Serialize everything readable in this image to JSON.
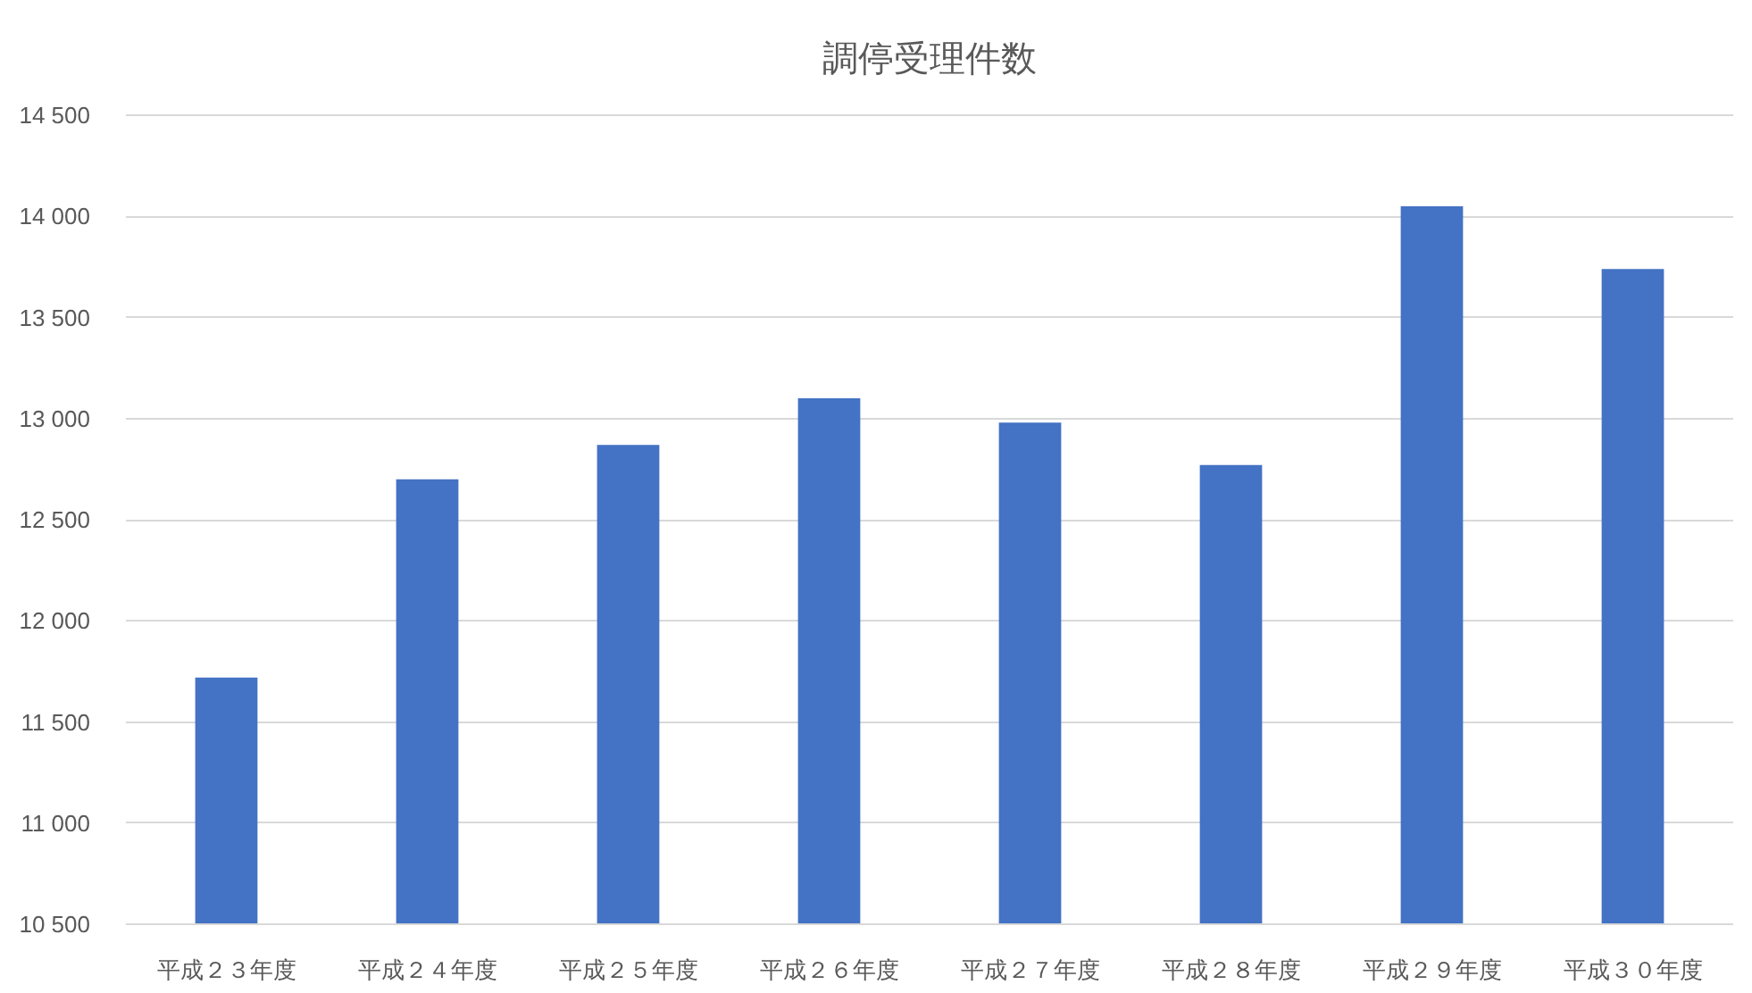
{
  "chart_data": {
    "type": "bar",
    "title": "調停受理件数",
    "categories": [
      "平成２３年度",
      "平成２４年度",
      "平成２５年度",
      "平成２６年度",
      "平成２７年度",
      "平成２８年度",
      "平成２９年度",
      "平成３０年度"
    ],
    "values": [
      11720,
      12700,
      12870,
      13100,
      12980,
      12770,
      14050,
      13740
    ],
    "color": "#4472c4",
    "ylim": [
      10500,
      14500
    ],
    "yticks": [
      {
        "value": 10500,
        "label": "10 500"
      },
      {
        "value": 11000,
        "label": "11 000"
      },
      {
        "value": 11500,
        "label": "11 500"
      },
      {
        "value": 12000,
        "label": "12 000"
      },
      {
        "value": 12500,
        "label": "12 500"
      },
      {
        "value": 13000,
        "label": "13 000"
      },
      {
        "value": 13500,
        "label": "13 500"
      },
      {
        "value": 14000,
        "label": "14 000"
      },
      {
        "value": 14500,
        "label": "14 500"
      }
    ],
    "grid": "y"
  }
}
